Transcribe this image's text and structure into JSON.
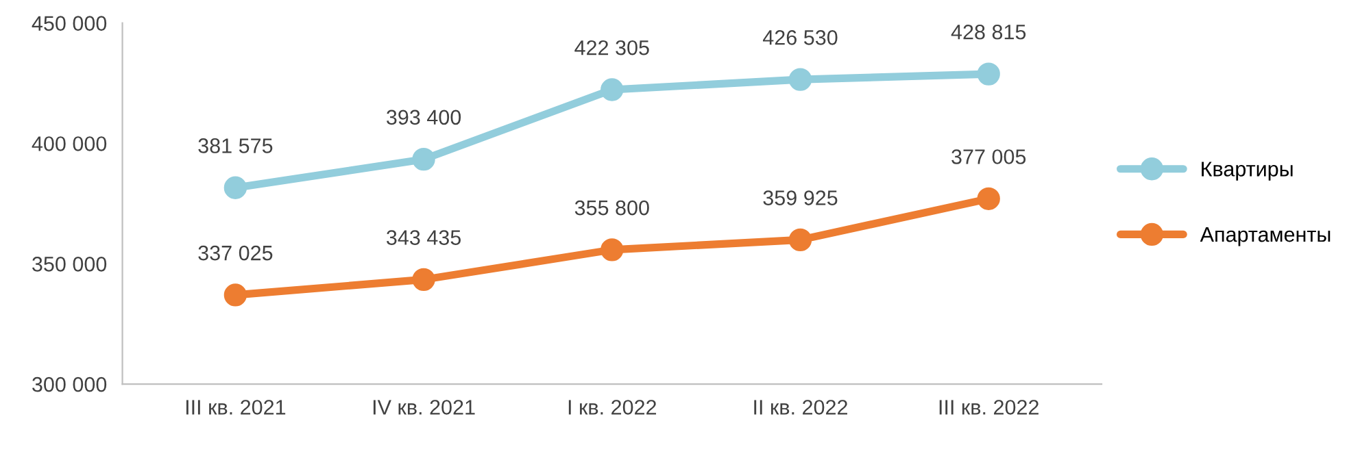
{
  "chart_data": {
    "type": "line",
    "categories": [
      "III кв. 2021",
      "IV кв. 2021",
      "I кв. 2022",
      "II кв. 2022",
      "III кв. 2022"
    ],
    "series": [
      {
        "name": "Квартиры",
        "color": "#92cddc",
        "values": [
          381575,
          393400,
          422305,
          426530,
          428815
        ],
        "value_labels": [
          "381 575",
          "393 400",
          "422 305",
          "426 530",
          "428 815"
        ]
      },
      {
        "name": "Апартаменты",
        "color": "#ed7d31",
        "values": [
          337025,
          343435,
          355800,
          359925,
          377005
        ],
        "value_labels": [
          "337 025",
          "343 435",
          "355 800",
          "359 925",
          "377 005"
        ]
      }
    ],
    "ylim": [
      300000,
      450000
    ],
    "yticks": [
      {
        "value": 300000,
        "label": "300 000"
      },
      {
        "value": 350000,
        "label": "350 000"
      },
      {
        "value": 400000,
        "label": "400 000"
      },
      {
        "value": 450000,
        "label": "450 000"
      }
    ],
    "grid": false,
    "legend": "right",
    "marker": "circle",
    "line_style": "solid"
  }
}
